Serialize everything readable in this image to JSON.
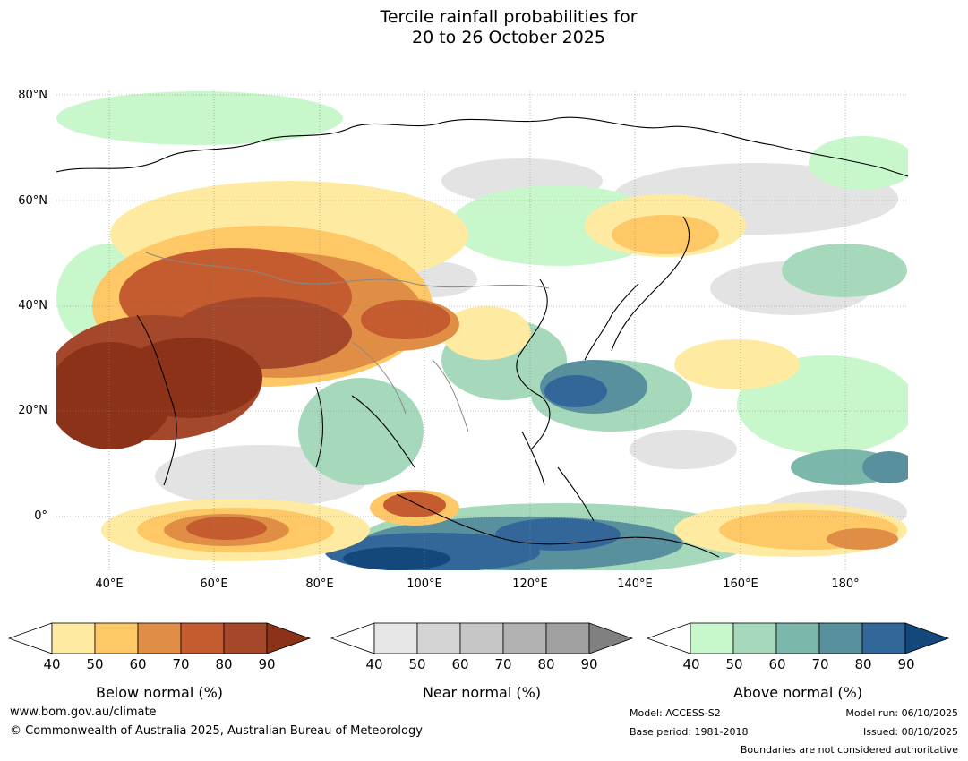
{
  "title": {
    "line1": "Tercile rainfall probabilities for",
    "line2": "20 to 26 October 2025"
  },
  "map": {
    "lat_labels": [
      "80°N",
      "60°N",
      "40°N",
      "20°N",
      "0°"
    ],
    "lon_labels": [
      "40°E",
      "60°E",
      "80°E",
      "100°E",
      "120°E",
      "140°E",
      "160°E",
      "180°"
    ]
  },
  "colorbars": {
    "below": {
      "label": "Below normal (%)",
      "ticks": [
        "40",
        "50",
        "60",
        "70",
        "80",
        "90"
      ],
      "colors": [
        "#ffffff",
        "#feeba1",
        "#fdc865",
        "#e08e45",
        "#c55c2f",
        "#a5472b",
        "#8b3219"
      ]
    },
    "near": {
      "label": "Near normal (%)",
      "ticks": [
        "40",
        "50",
        "60",
        "70",
        "80",
        "90"
      ],
      "colors": [
        "#ffffff",
        "#e6e6e6",
        "#d4d4d4",
        "#c6c6c6",
        "#b2b2b2",
        "#a0a0a0",
        "#808080"
      ]
    },
    "above": {
      "label": "Above normal (%)",
      "ticks": [
        "40",
        "50",
        "60",
        "70",
        "80",
        "90"
      ],
      "colors": [
        "#ffffff",
        "#c7f7cb",
        "#a6d9bb",
        "#7bb8ab",
        "#58909e",
        "#336699",
        "#14477b"
      ]
    }
  },
  "footer": {
    "website": "www.bom.gov.au/climate",
    "copyright": "© Commonwealth of Australia 2025, Australian Bureau of Meteorology",
    "model": "Model: ACCESS-S2",
    "base_period": "Base period: 1981-2018",
    "model_run": "Model run: 06/10/2025",
    "issued": "Issued: 08/10/2025",
    "disclaimer": "Boundaries are not considered authoritative"
  }
}
